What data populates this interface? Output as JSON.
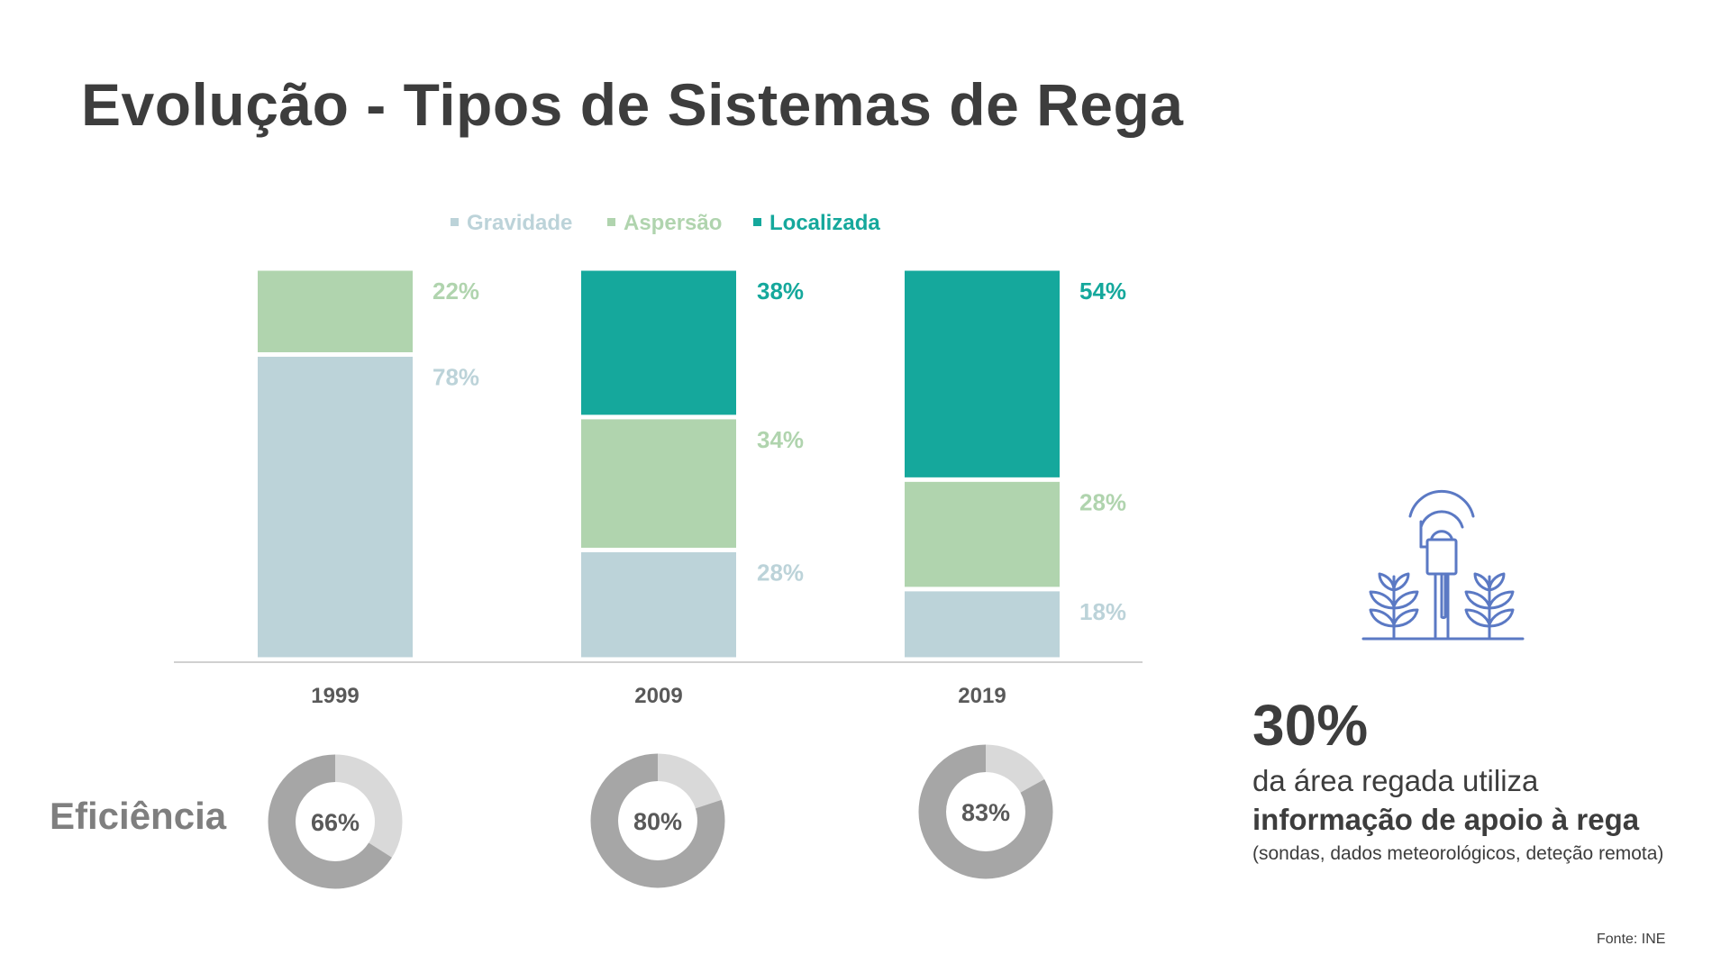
{
  "title": "Evolução - Tipos de Sistemas de Rega",
  "chart_data": [
    {
      "type": "bar",
      "stacked": true,
      "percent_stacked": true,
      "categories": [
        "1999",
        "2009",
        "2019"
      ],
      "series": [
        {
          "name": "Gravidade",
          "values": [
            78,
            28,
            18
          ],
          "color": "#bcd3d9"
        },
        {
          "name": "Aspersão",
          "values": [
            22,
            34,
            28
          ],
          "color": "#b0d4ae"
        },
        {
          "name": "Localizada",
          "values": [
            0,
            38,
            54
          ],
          "color": "#15a89c"
        }
      ],
      "data_labels": [
        [
          "78%",
          "28%",
          "18%"
        ],
        [
          "22%",
          "34%",
          "28%"
        ],
        [
          "",
          "38%",
          "54%"
        ]
      ],
      "legend_position": "top",
      "ylim": [
        0,
        100
      ],
      "grid": false,
      "xlabel": "",
      "ylabel": ""
    },
    {
      "type": "pie",
      "donut": true,
      "title": "Eficiência",
      "categories": [
        "1999",
        "2009",
        "2019"
      ],
      "values": [
        66,
        80,
        83
      ],
      "labels": [
        "66%",
        "80%",
        "83%"
      ],
      "colors": {
        "filled": "#a6a6a6",
        "remaining": "#d9d9d9"
      }
    }
  ],
  "callout": {
    "value": "30%",
    "line1": "da área regada utiliza",
    "line2": "informação de apoio à rega",
    "line3": "(sondas, dados meteorológicos, deteção remota)"
  },
  "icons": {
    "sensor": "soil-sensor-plants-icon"
  },
  "source": "Fonte: INE",
  "colors": {
    "title": "#3d3d3d",
    "axis_label": "#595959",
    "efficiency_label": "#7f7f7f",
    "icon": "#5b79c4"
  }
}
